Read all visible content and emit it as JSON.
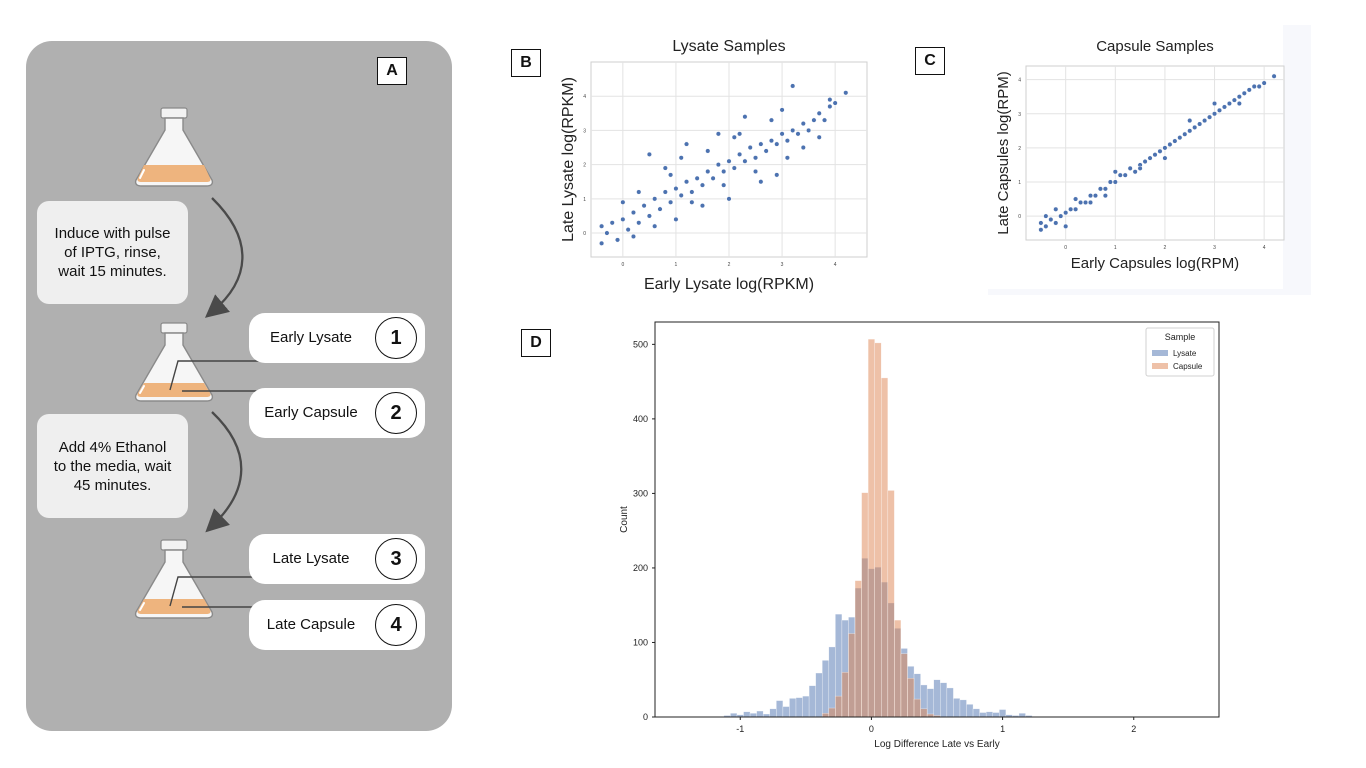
{
  "panel_tags": {
    "a": "A",
    "b": "B",
    "c": "C",
    "d": "D"
  },
  "panel_a": {
    "steps": [
      "Induce with pulse\nof IPTG, rinse,\nwait 15 minutes.",
      "Add 4% Ethanol\nto the media, wait\n45 minutes."
    ],
    "samples": [
      {
        "label": "Early Lysate",
        "number": "1"
      },
      {
        "label": "Early Capsule",
        "number": "2"
      },
      {
        "label": "Late Lysate",
        "number": "3"
      },
      {
        "label": "Late Capsule",
        "number": "4"
      }
    ],
    "colors": {
      "background": "#b0b0b0",
      "liquid": "#eeb47e",
      "box": "#efefef"
    }
  },
  "chart_data": [
    {
      "id": "B",
      "type": "scatter",
      "title": "Lysate Samples",
      "xlabel": "Early Lysate log(RPKM)",
      "ylabel": "Late Lysate log(RPKM)",
      "xlim": [
        -0.6,
        4.6
      ],
      "ylim": [
        -0.7,
        5.0
      ],
      "xticks": [
        "0",
        "1",
        "2",
        "3",
        "4"
      ],
      "yticks": [
        "0",
        "1",
        "2",
        "3",
        "4"
      ],
      "grid": true,
      "color": "#4c72b0",
      "x": [
        -0.4,
        -0.4,
        -0.3,
        -0.2,
        -0.1,
        0.0,
        0.1,
        0.2,
        0.3,
        0.4,
        0.5,
        0.6,
        0.7,
        0.8,
        0.9,
        1.0,
        1.1,
        1.2,
        1.3,
        1.4,
        1.5,
        1.6,
        1.7,
        1.8,
        1.9,
        2.0,
        2.1,
        2.2,
        2.3,
        2.4,
        2.5,
        2.6,
        2.7,
        2.8,
        2.9,
        3.0,
        3.1,
        3.2,
        3.3,
        3.4,
        3.5,
        3.6,
        3.7,
        3.8,
        3.9,
        4.0,
        4.2,
        0.5,
        0.8,
        1.0,
        1.2,
        1.5,
        1.8,
        2.0,
        2.3,
        2.6,
        2.9,
        3.2,
        0.0,
        0.3,
        0.6,
        0.9,
        1.3,
        1.6,
        1.9,
        2.2,
        2.5,
        2.8,
        3.1,
        3.4,
        3.7,
        3.9,
        0.2,
        1.1,
        2.1,
        3.0
      ],
      "y": [
        -0.3,
        0.2,
        0.0,
        0.3,
        -0.2,
        0.4,
        0.1,
        0.6,
        0.3,
        0.8,
        0.5,
        1.0,
        0.7,
        1.2,
        0.9,
        1.3,
        1.1,
        1.5,
        1.2,
        1.6,
        1.4,
        1.8,
        1.6,
        2.0,
        1.8,
        2.1,
        1.9,
        2.3,
        2.1,
        2.5,
        2.2,
        2.6,
        2.4,
        2.7,
        2.6,
        2.9,
        2.7,
        3.0,
        2.9,
        3.2,
        3.0,
        3.3,
        3.5,
        3.3,
        3.7,
        3.8,
        4.1,
        2.3,
        1.9,
        0.4,
        2.6,
        0.8,
        2.9,
        1.0,
        3.4,
        1.5,
        1.7,
        4.3,
        0.9,
        1.2,
        0.2,
        1.7,
        0.9,
        2.4,
        1.4,
        2.9,
        1.8,
        3.3,
        2.2,
        2.5,
        2.8,
        3.9,
        -0.1,
        2.2,
        2.8,
        3.6
      ],
      "note_color": "#4c72b0"
    },
    {
      "id": "C",
      "type": "scatter",
      "title": "Capsule Samples",
      "xlabel": "Early Capsules log(RPM)",
      "ylabel": "Late Capsules log(RPM)",
      "xlim": [
        -0.8,
        4.4
      ],
      "ylim": [
        -0.7,
        4.4
      ],
      "xticks": [
        "0",
        "1",
        "2",
        "3",
        "4"
      ],
      "yticks": [
        "0",
        "1",
        "2",
        "3",
        "4"
      ],
      "grid": true,
      "color": "#4c72b0",
      "x": [
        -0.5,
        -0.4,
        -0.3,
        -0.2,
        -0.1,
        0.0,
        0.1,
        0.2,
        0.3,
        0.4,
        0.5,
        0.6,
        0.7,
        0.8,
        0.9,
        1.0,
        1.1,
        1.2,
        1.3,
        1.4,
        1.5,
        1.6,
        1.7,
        1.8,
        1.9,
        2.0,
        2.1,
        2.2,
        2.3,
        2.4,
        2.5,
        2.6,
        2.7,
        2.8,
        2.9,
        3.0,
        3.1,
        3.2,
        3.3,
        3.4,
        3.5,
        3.6,
        3.7,
        3.8,
        3.9,
        4.0,
        4.2,
        -0.5,
        -0.4,
        -0.2,
        0.0,
        0.2,
        0.5,
        0.8,
        1.0,
        1.5,
        2.0,
        2.5,
        3.0,
        3.5
      ],
      "y": [
        -0.4,
        -0.3,
        -0.1,
        -0.2,
        0.0,
        0.1,
        0.2,
        0.2,
        0.4,
        0.4,
        0.6,
        0.6,
        0.8,
        0.8,
        1.0,
        1.0,
        1.2,
        1.2,
        1.4,
        1.3,
        1.5,
        1.6,
        1.7,
        1.8,
        1.9,
        2.0,
        2.1,
        2.2,
        2.3,
        2.4,
        2.5,
        2.6,
        2.7,
        2.8,
        2.9,
        3.0,
        3.1,
        3.2,
        3.3,
        3.4,
        3.5,
        3.6,
        3.7,
        3.8,
        3.8,
        3.9,
        4.1,
        -0.2,
        0.0,
        0.2,
        -0.3,
        0.5,
        0.4,
        0.6,
        1.3,
        1.4,
        1.7,
        2.8,
        3.3,
        3.3
      ]
    },
    {
      "id": "D",
      "type": "histogram",
      "xlabel": "Log Difference Late vs Early",
      "ylabel": "Count",
      "xlim": [
        -1.65,
        2.65
      ],
      "ylim": [
        0,
        530
      ],
      "xticks": [
        "-1",
        "0",
        "1",
        "2"
      ],
      "xtick_values": [
        -1,
        0,
        1,
        2
      ],
      "yticks": [
        "0",
        "100",
        "200",
        "300",
        "400",
        "500"
      ],
      "ytick_values": [
        0,
        100,
        200,
        300,
        400,
        500
      ],
      "grid": false,
      "legend": {
        "title": "Sample",
        "placement": "top-right"
      },
      "series": [
        {
          "name": "Lysate",
          "color": "#4c72b0",
          "opacity": 0.5,
          "bin_start": -1.125,
          "bin_width": 0.05,
          "values": [
            2,
            5,
            3,
            7,
            5,
            8,
            4,
            11,
            22,
            14,
            25,
            26,
            28,
            42,
            59,
            76,
            94,
            138,
            130,
            134,
            173,
            213,
            199,
            201,
            181,
            153,
            119,
            92,
            68,
            58,
            43,
            38,
            50,
            46,
            39,
            25,
            23,
            17,
            11,
            6,
            7,
            6,
            10,
            3,
            2,
            5,
            2
          ]
        },
        {
          "name": "Capsule",
          "color": "#dd8452",
          "opacity": 0.5,
          "bin_start": -0.375,
          "bin_width": 0.05,
          "values": [
            5,
            12,
            28,
            60,
            112,
            183,
            301,
            507,
            502,
            455,
            304,
            130,
            85,
            52,
            24,
            11,
            4,
            2
          ]
        }
      ]
    }
  ]
}
